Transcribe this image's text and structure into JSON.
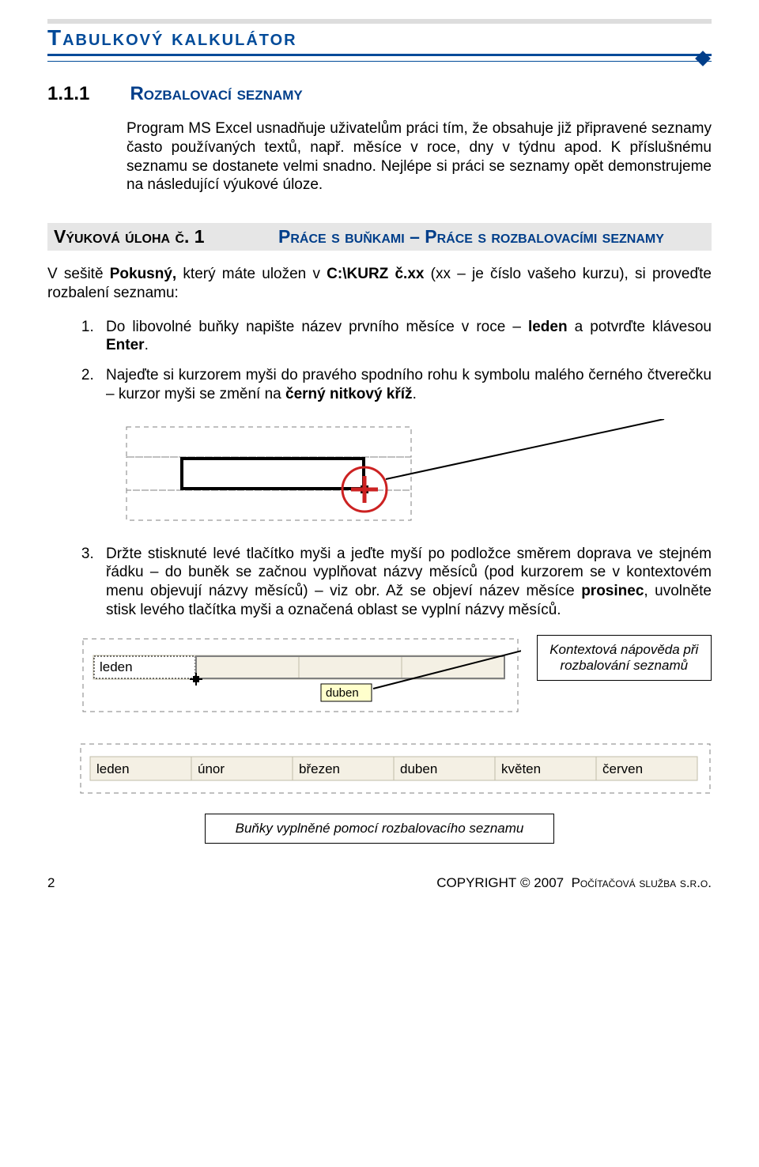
{
  "header": {
    "title": "Tabulkový kalkulátor"
  },
  "section": {
    "number": "1.1.1",
    "title": "Rozbalovací seznamy"
  },
  "intro": "Program MS Excel usnadňuje uživatelům práci tím, že obsahuje již připravené seznamy často používaných textů, např. měsíce v roce, dny v týdnu apod. K příslušnému seznamu se dostanete velmi snadno. Nejlépe si práci se seznamy opět demonstrujeme na následující výukové úloze.",
  "task": {
    "left": "Výuková úloha č. 1",
    "right": "Práce s buňkami – Práce s rozbalovacími seznamy"
  },
  "body2": "V sešitě Pokusný, který máte uložen v C:\\KURZ č.xx (xx – je číslo vašeho kurzu), si proveďte rozbalení seznamu:",
  "steps": {
    "s1": "Do libovolné buňky napište název prvního měsíce v roce – leden a potvrďte klávesou Enter.",
    "s2": "Najeďte si kurzorem myši do pravého spodního rohu k symbolu malého černého čtverečku – kurzor myši se změní na černý nitkový kříž.",
    "s3": "Držte stisknuté levé tlačítko myši a jeďte myší po podložce směrem doprava ve stejném řádku – do buněk se začnou vyplňovat názvy měsíců (pod kurzorem se v kontextovém menu objevují názvy měsíců) – viz obr. Až se objeví název měsíce prosinec, uvolněte stisk levého tlačítka myši a označená oblast se vyplní názvy měsíců."
  },
  "fig1": {
    "cross_color": "#cc2222",
    "circle_color": "#cc2222",
    "cell_border": "#000000",
    "dash_color": "#808080"
  },
  "fig2": {
    "label_leden": "leden",
    "tooltip": "duben",
    "callout": "Kontextová nápověda při rozbalování seznamů",
    "cell_bg": "#f4f0e4",
    "tooltip_bg": "#ffffcc",
    "border_color": "#c0bca8"
  },
  "fig3": {
    "cells": [
      "leden",
      "únor",
      "březen",
      "duben",
      "květen",
      "červen"
    ],
    "cell_bg": "#f4f0e4",
    "border_color": "#c0bca8",
    "caption": "Buňky vyplněné pomocí rozbalovacího seznamu"
  },
  "footer": {
    "page": "2",
    "copyright": "Copyright © 2007  Počítačová služba s.r.o."
  },
  "colors": {
    "brand_blue": "#004a99",
    "gray_band": "#dddddd"
  }
}
